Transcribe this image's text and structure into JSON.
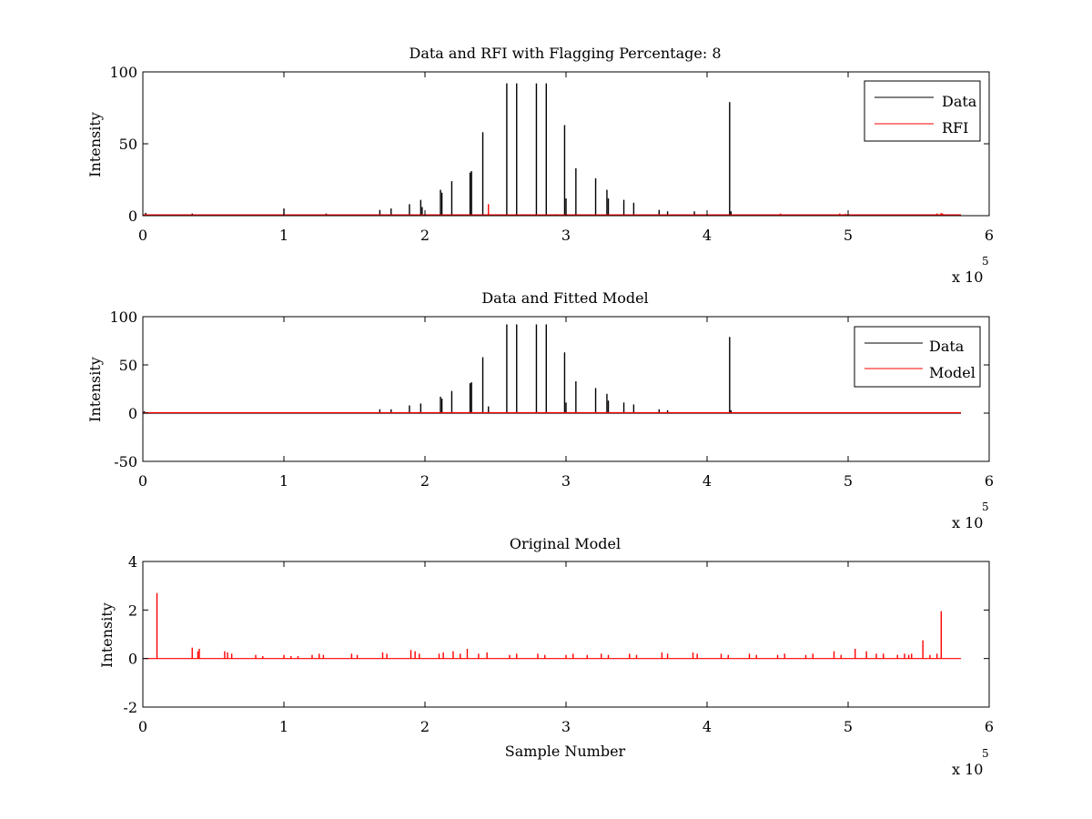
{
  "chart_data": [
    {
      "type": "line",
      "title": "Data and RFI with Flagging Percentage: 8",
      "xlabel": "",
      "ylabel": "Intensity",
      "xlim": [
        0,
        6
      ],
      "ylim": [
        0,
        100
      ],
      "x_ticks": [
        "0",
        "1",
        "2",
        "3",
        "4",
        "5",
        "6"
      ],
      "y_ticks": [
        "0",
        "50",
        "100"
      ],
      "x_multiplier": "x 10",
      "x_multiplier_exp": "5",
      "x_scale": 100000,
      "grid": false,
      "legend_position": "top-right",
      "series": [
        {
          "name": "Data",
          "color": "#000000",
          "style": "spikes",
          "baseline": 0.6,
          "x": [
            0.02,
            0.35,
            1.0,
            1.3,
            1.68,
            1.76,
            1.89,
            1.97,
            1.98,
            2.11,
            2.12,
            2.19,
            2.32,
            2.33,
            2.41,
            2.58,
            2.65,
            2.79,
            2.86,
            2.99,
            3.0,
            3.07,
            3.21,
            3.29,
            3.3,
            3.41,
            3.48,
            3.66,
            3.72,
            3.91,
            4.16,
            4.17
          ],
          "y": [
            2,
            1.5,
            5,
            1.5,
            4,
            5,
            8,
            11,
            6,
            18,
            16,
            24,
            30,
            31,
            58,
            92,
            92,
            92,
            92,
            63,
            12,
            33,
            26,
            18,
            12,
            11,
            9,
            4,
            3,
            3,
            79,
            3
          ]
        },
        {
          "name": "RFI",
          "color": "#ff0000",
          "style": "spikes",
          "baseline": 0.6,
          "x": [
            2.45,
            2.93,
            4.52,
            4.94,
            4.98,
            5.63,
            5.66,
            5.67
          ],
          "y": [
            8,
            1,
            1.5,
            1.5,
            1.2,
            1.5,
            1.8,
            1.5
          ]
        }
      ]
    },
    {
      "type": "line",
      "title": "Data and Fitted Model",
      "xlabel": "",
      "ylabel": "Intensity",
      "xlim": [
        0,
        6
      ],
      "ylim": [
        -50,
        100
      ],
      "x_ticks": [
        "0",
        "1",
        "2",
        "3",
        "4",
        "5",
        "6"
      ],
      "y_ticks": [
        "-50",
        "0",
        "50",
        "100"
      ],
      "x_multiplier": "x 10",
      "x_multiplier_exp": "5",
      "x_scale": 100000,
      "grid": false,
      "legend_position": "top-right",
      "series": [
        {
          "name": "Data",
          "color": "#000000",
          "style": "spikes",
          "baseline": 0,
          "x": [
            0.01,
            1.68,
            1.76,
            1.89,
            1.97,
            2.11,
            2.12,
            2.19,
            2.32,
            2.33,
            2.41,
            2.45,
            2.58,
            2.65,
            2.79,
            2.86,
            2.99,
            3.0,
            3.07,
            3.21,
            3.29,
            3.3,
            3.41,
            3.48,
            3.66,
            3.72,
            4.16,
            4.17
          ],
          "y": [
            2,
            4,
            4,
            8,
            10,
            17,
            15,
            23,
            31,
            32,
            58,
            7,
            92,
            92,
            92,
            92,
            63,
            11,
            33,
            26,
            20,
            13,
            11,
            9,
            4,
            3,
            79,
            3
          ]
        },
        {
          "name": "Model",
          "color": "#ff0000",
          "style": "line",
          "x": [
            0,
            5.8
          ],
          "y": [
            0.5,
            0.5
          ]
        }
      ]
    },
    {
      "type": "line",
      "title": "Original Model",
      "xlabel": "Sample Number",
      "ylabel": "Intensity",
      "xlim": [
        0,
        6
      ],
      "ylim": [
        -2,
        4
      ],
      "x_ticks": [
        "0",
        "1",
        "2",
        "3",
        "4",
        "5",
        "6"
      ],
      "y_ticks": [
        "-2",
        "0",
        "2",
        "4"
      ],
      "x_multiplier": "x 10",
      "x_multiplier_exp": "5",
      "x_scale": 100000,
      "grid": false,
      "legend_position": "none",
      "series": [
        {
          "name": "",
          "color": "#ff0000",
          "style": "spikes",
          "baseline": 0,
          "x": [
            0.1,
            0.35,
            0.39,
            0.4,
            0.58,
            0.6,
            0.63,
            0.8,
            0.85,
            1.0,
            1.05,
            1.1,
            1.2,
            1.25,
            1.28,
            1.48,
            1.52,
            1.7,
            1.73,
            1.9,
            1.93,
            1.96,
            2.1,
            2.13,
            2.2,
            2.25,
            2.3,
            2.38,
            2.44,
            2.6,
            2.65,
            2.8,
            2.85,
            3.0,
            3.05,
            3.15,
            3.25,
            3.3,
            3.45,
            3.5,
            3.68,
            3.72,
            3.9,
            3.93,
            4.1,
            4.15,
            4.3,
            4.35,
            4.5,
            4.55,
            4.7,
            4.75,
            4.9,
            4.95,
            5.05,
            5.13,
            5.2,
            5.25,
            5.35,
            5.4,
            5.43,
            5.45,
            5.53,
            5.58,
            5.63,
            5.66
          ],
          "y": [
            2.7,
            0.45,
            0.3,
            0.4,
            0.3,
            0.25,
            0.2,
            0.15,
            0.1,
            0.15,
            0.1,
            0.1,
            0.15,
            0.2,
            0.15,
            0.2,
            0.15,
            0.25,
            0.2,
            0.35,
            0.3,
            0.2,
            0.2,
            0.25,
            0.3,
            0.2,
            0.4,
            0.2,
            0.25,
            0.15,
            0.2,
            0.2,
            0.15,
            0.15,
            0.2,
            0.15,
            0.2,
            0.15,
            0.2,
            0.15,
            0.25,
            0.2,
            0.25,
            0.2,
            0.2,
            0.15,
            0.2,
            0.15,
            0.15,
            0.2,
            0.15,
            0.2,
            0.3,
            0.15,
            0.4,
            0.3,
            0.2,
            0.2,
            0.15,
            0.2,
            0.15,
            0.2,
            0.75,
            0.15,
            0.2,
            1.95
          ]
        }
      ]
    }
  ]
}
